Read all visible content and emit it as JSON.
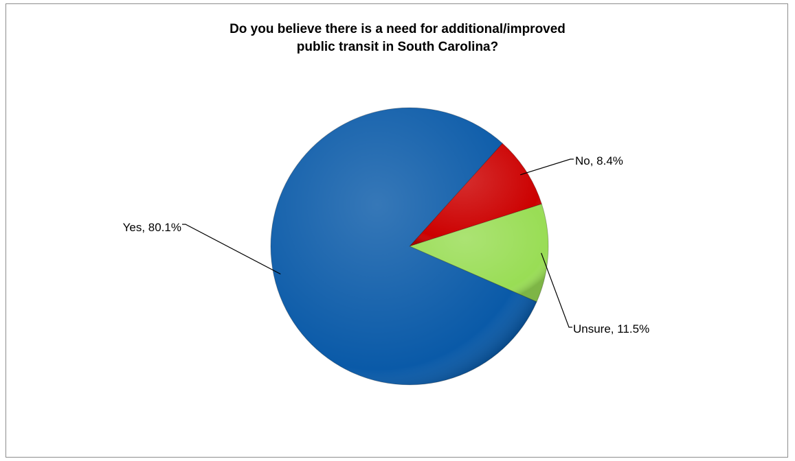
{
  "chart_data": {
    "type": "pie",
    "title": "Do you believe there is a need for additional/improved public transit in South Carolina?",
    "title_lines": [
      "Do you believe there is a need for additional/improved",
      "public transit in South Carolina?"
    ],
    "slices": [
      {
        "label": "No",
        "value": 8.4,
        "display": "No, 8.4%",
        "color": "#cc0000"
      },
      {
        "label": "Unsure",
        "value": 11.5,
        "display": "Unsure, 11.5%",
        "color": "#99dd55"
      },
      {
        "label": "Yes",
        "value": 80.1,
        "display": "Yes, 80.1%",
        "color": "#0a5aa8"
      }
    ],
    "legend": "none",
    "data_labels": "outside with leader lines"
  }
}
